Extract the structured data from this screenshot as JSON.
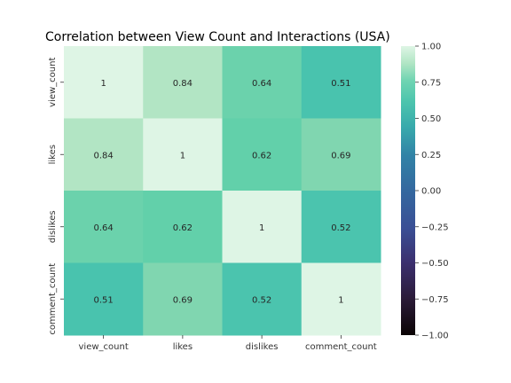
{
  "chart_data": {
    "type": "heatmap",
    "title": "Correlation between View Count and Interactions (USA)",
    "variables": [
      "view_count",
      "likes",
      "dislikes",
      "comment_count"
    ],
    "matrix": [
      [
        1,
        0.84,
        0.64,
        0.51
      ],
      [
        0.84,
        1,
        0.62,
        0.69
      ],
      [
        0.64,
        0.62,
        1,
        0.52
      ],
      [
        0.51,
        0.69,
        0.52,
        1
      ]
    ],
    "cell_labels": [
      [
        "1",
        "0.84",
        "0.64",
        "0.51"
      ],
      [
        "0.84",
        "1",
        "0.62",
        "0.69"
      ],
      [
        "0.64",
        "0.62",
        "1",
        "0.52"
      ],
      [
        "0.51",
        "0.69",
        "0.52",
        "1"
      ]
    ],
    "colorbar": {
      "range": [
        -1,
        1
      ],
      "ticks": [
        1,
        0.75,
        0.5,
        0.25,
        0,
        -0.25,
        -0.5,
        -0.75,
        -1
      ],
      "tick_labels": [
        "1.00",
        "0.75",
        "0.50",
        "0.25",
        "0.00",
        "−0.25",
        "−0.50",
        "−0.75",
        "−1.00"
      ],
      "colormap": "mako"
    }
  }
}
